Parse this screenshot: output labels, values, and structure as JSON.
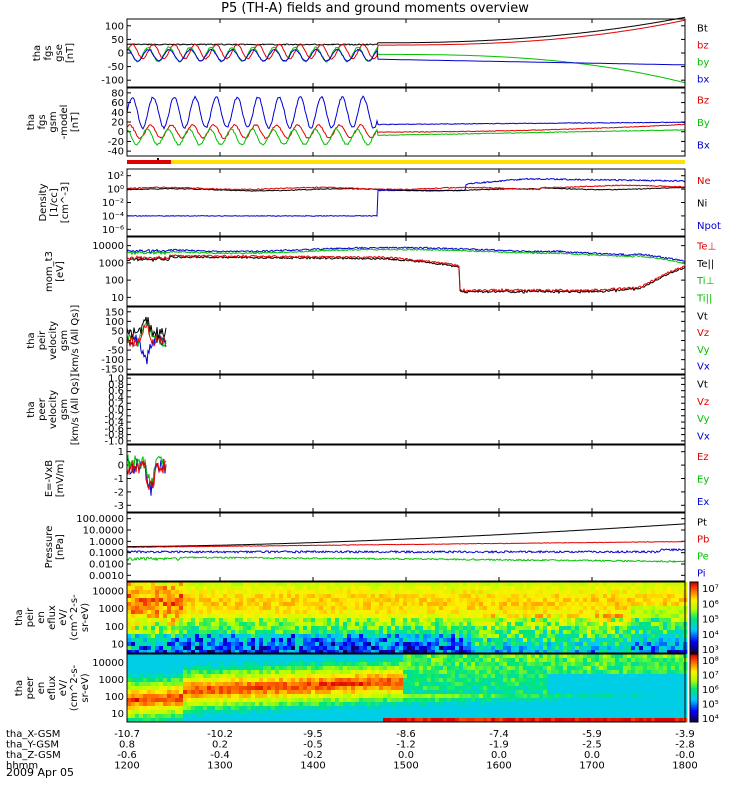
{
  "title": "P5 (TH-A) fields and ground moments overview",
  "date": "2009 Apr 05",
  "chart_data": [
    {
      "type": "line",
      "ylabel": [
        "tha",
        "fgs",
        "gse",
        "[nT]"
      ],
      "yticks": [
        "100",
        "50",
        "0",
        "-50",
        "-100"
      ],
      "legend": [
        {
          "label": "Bt",
          "color": "#000000"
        },
        {
          "label": "bz",
          "color": "#e00000"
        },
        {
          "label": "by",
          "color": "#00c000"
        },
        {
          "label": "bx",
          "color": "#0000d0"
        }
      ]
    },
    {
      "type": "line",
      "ylabel": [
        "tha",
        "fgs",
        "gsm",
        "-model",
        "[nT]"
      ],
      "yticks": [
        "80",
        "60",
        "40",
        "20",
        "0",
        "-20",
        "-40"
      ],
      "legend": [
        {
          "label": "Bz",
          "color": "#e00000"
        },
        {
          "label": "By",
          "color": "#00c000"
        },
        {
          "label": "Bx",
          "color": "#0000d0"
        }
      ]
    },
    {
      "type": "line",
      "ylabel": [
        "Density",
        "[1/cc]",
        "[cm^-3]"
      ],
      "yticks": [
        "10²",
        "10⁰",
        "10⁻²",
        "10⁻⁴",
        "10⁻⁶"
      ],
      "legend": [
        {
          "label": "Ne",
          "color": "#e00000"
        },
        {
          "label": "Ni",
          "color": "#000000"
        },
        {
          "label": "Npot",
          "color": "#0000d0"
        }
      ]
    },
    {
      "type": "line",
      "ylabel": [
        "mom_t3",
        "[eV]"
      ],
      "yticks": [
        "10000",
        "1000",
        "100",
        "10"
      ],
      "legend": [
        {
          "label": "Te⊥",
          "color": "#e00000"
        },
        {
          "label": "Te||",
          "color": "#000000"
        },
        {
          "label": "Ti⊥",
          "color": "#00c000"
        },
        {
          "label": "Ti||",
          "color": "#00c000"
        }
      ]
    },
    {
      "type": "line",
      "ylabel": [
        "tha",
        "peir",
        "velocity",
        "gsm",
        "[km/s (All Qs)]"
      ],
      "yticks": [
        "150",
        "100",
        "50",
        "0",
        "-50",
        "-100",
        "-150"
      ],
      "legend": [
        {
          "label": "Vt",
          "color": "#000000"
        },
        {
          "label": "Vz",
          "color": "#e00000"
        },
        {
          "label": "Vy",
          "color": "#00c000"
        },
        {
          "label": "Vx",
          "color": "#0000d0"
        }
      ]
    },
    {
      "type": "line",
      "ylabel": [
        "tha",
        "peer",
        "velocity",
        "gsm",
        "[km/s (All Qs)]"
      ],
      "yticks": [
        "1.0",
        "0.8",
        "0.6",
        "0.4",
        "0.2",
        "0.0",
        "-0.2",
        "-0.4",
        "-0.6",
        "-0.8",
        "-1.0"
      ],
      "legend": [
        {
          "label": "Vt",
          "color": "#000000"
        },
        {
          "label": "Vz",
          "color": "#e00000"
        },
        {
          "label": "Vy",
          "color": "#00c000"
        },
        {
          "label": "Vx",
          "color": "#0000d0"
        }
      ]
    },
    {
      "type": "line",
      "ylabel": [
        "E=-VxB",
        "[mV/m]"
      ],
      "yticks": [
        "1",
        "0",
        "-1",
        "-2",
        "-3"
      ],
      "legend": [
        {
          "label": "Ez",
          "color": "#e00000"
        },
        {
          "label": "Ey",
          "color": "#00c000"
        },
        {
          "label": "Ex",
          "color": "#0000d0"
        }
      ]
    },
    {
      "type": "line",
      "ylabel": [
        "Pressure",
        "[nPa]"
      ],
      "yticks": [
        "100.0000",
        "10.0000",
        "1.0000",
        "0.1000",
        "0.0100",
        "0.0010"
      ],
      "legend": [
        {
          "label": "Pt",
          "color": "#000000"
        },
        {
          "label": "Pb",
          "color": "#e00000"
        },
        {
          "label": "Pe",
          "color": "#00c000"
        },
        {
          "label": "Pi",
          "color": "#0000d0"
        }
      ]
    },
    {
      "type": "heatmap",
      "ylabel": [
        "tha",
        "peir",
        "en",
        "eflux",
        "eV/",
        "(cm^2-s-",
        "sr-eV)"
      ],
      "yticks": [
        "10000",
        "1000",
        "100",
        "10"
      ],
      "colorbar_ticks": [
        "10⁷",
        "10⁶",
        "10⁵",
        "10⁴",
        "10³"
      ]
    },
    {
      "type": "heatmap",
      "ylabel": [
        "tha",
        "peer",
        "en",
        "eflux",
        "eV/",
        "(cm^2-s-",
        "sr-eV)"
      ],
      "yticks": [
        "10000",
        "1000",
        "100",
        "10"
      ],
      "colorbar_ticks": [
        "10⁸",
        "10⁷",
        "10⁶",
        "10⁵",
        "10⁴"
      ]
    }
  ],
  "x_axis": {
    "rows": [
      {
        "label": "tha_X-GSM",
        "values": [
          "-10.7",
          "-10.2",
          "-9.5",
          "-8.6",
          "-7.4",
          "-5.9",
          "-3.9"
        ]
      },
      {
        "label": "tha_Y-GSM",
        "values": [
          "0.8",
          "0.2",
          "-0.5",
          "-1.2",
          "-1.9",
          "-2.5",
          "-2.8"
        ]
      },
      {
        "label": "tha_Z-GSM",
        "values": [
          "-0.6",
          "-0.4",
          "-0.2",
          "0.0",
          "0.0",
          "0.0",
          "-0.0"
        ]
      },
      {
        "label": "hhmm",
        "values": [
          "1200",
          "1300",
          "1400",
          "1500",
          "1600",
          "1700",
          "1800"
        ]
      }
    ]
  }
}
